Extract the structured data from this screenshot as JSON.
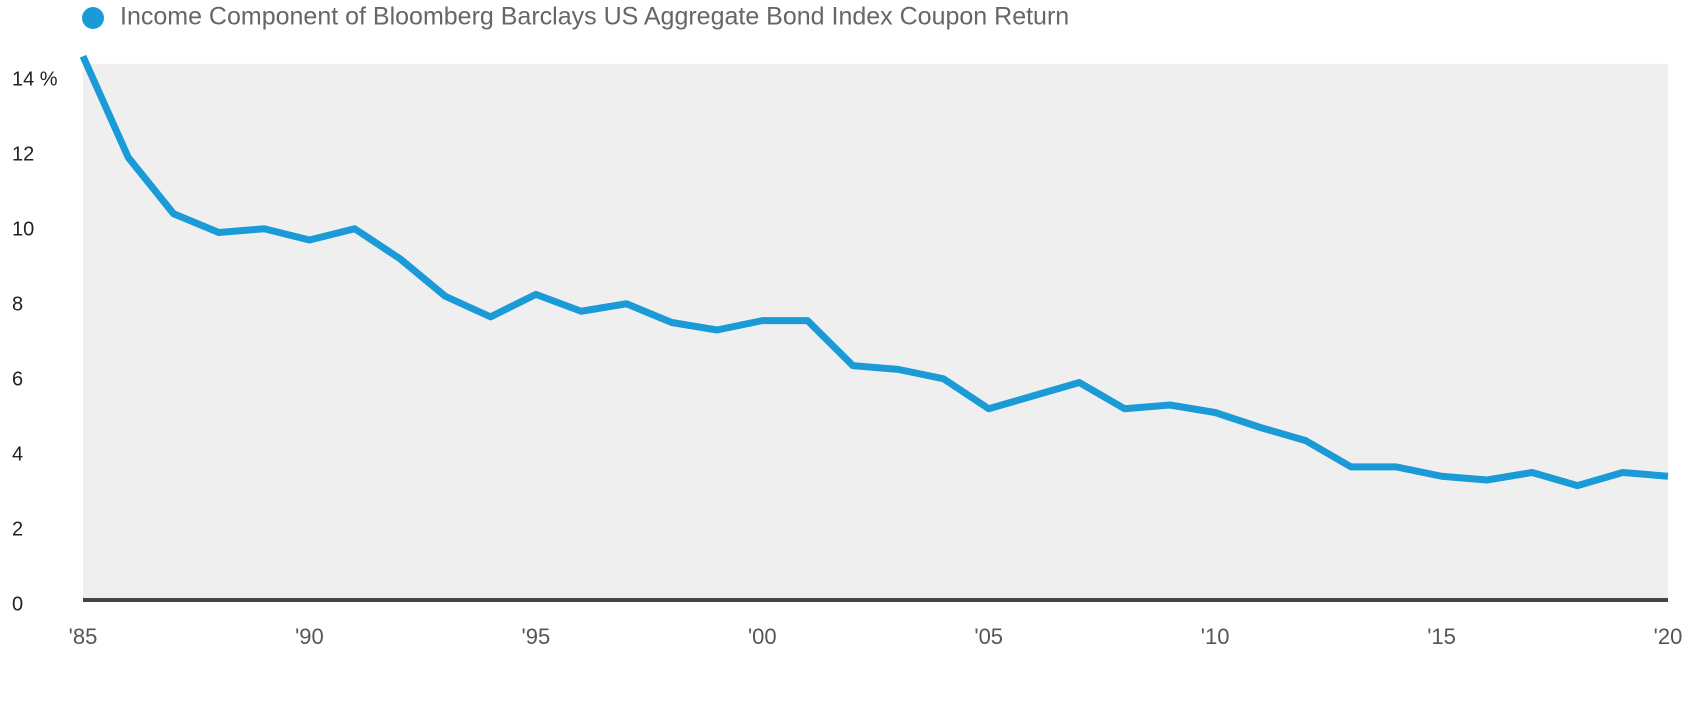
{
  "chart_data": {
    "type": "line",
    "legend_label": "Income Component of Bloomberg Barclays US Aggregate Bond Index Coupon Return",
    "x": [
      1985,
      1986,
      1987,
      1988,
      1989,
      1990,
      1991,
      1992,
      1993,
      1994,
      1995,
      1996,
      1997,
      1998,
      1999,
      2000,
      2001,
      2002,
      2003,
      2004,
      2005,
      2006,
      2007,
      2008,
      2009,
      2010,
      2011,
      2012,
      2013,
      2014,
      2015,
      2016,
      2017,
      2018,
      2019,
      2020
    ],
    "series": [
      {
        "name": "Income Component of Bloomberg Barclays US Aggregate Bond Index Coupon Return",
        "color": "#1a9bd7",
        "values": [
          14.5,
          11.8,
          10.3,
          9.8,
          9.9,
          9.6,
          9.9,
          9.1,
          8.1,
          7.55,
          8.15,
          7.7,
          7.9,
          7.4,
          7.2,
          7.45,
          7.45,
          6.25,
          6.15,
          5.9,
          5.1,
          5.45,
          5.8,
          5.1,
          5.2,
          5.0,
          4.6,
          4.25,
          3.55,
          3.55,
          3.3,
          3.2,
          3.4,
          3.05,
          3.4,
          3.3
        ]
      }
    ],
    "xlim": [
      1985,
      2020
    ],
    "xticks": [
      {
        "value": 1985,
        "label": "'85"
      },
      {
        "value": 1990,
        "label": "'90"
      },
      {
        "value": 1995,
        "label": "'95"
      },
      {
        "value": 2000,
        "label": "'00"
      },
      {
        "value": 2005,
        "label": "'05"
      },
      {
        "value": 2010,
        "label": "'10"
      },
      {
        "value": 2015,
        "label": "'15"
      },
      {
        "value": 2020,
        "label": "'20"
      }
    ],
    "ylim": [
      0,
      14.3
    ],
    "yticks": [
      0,
      2,
      4,
      6,
      8,
      10,
      12,
      {
        "value": 14,
        "label": "14 %"
      }
    ],
    "grid": false,
    "background": "#efefef",
    "legend": "top-left"
  }
}
